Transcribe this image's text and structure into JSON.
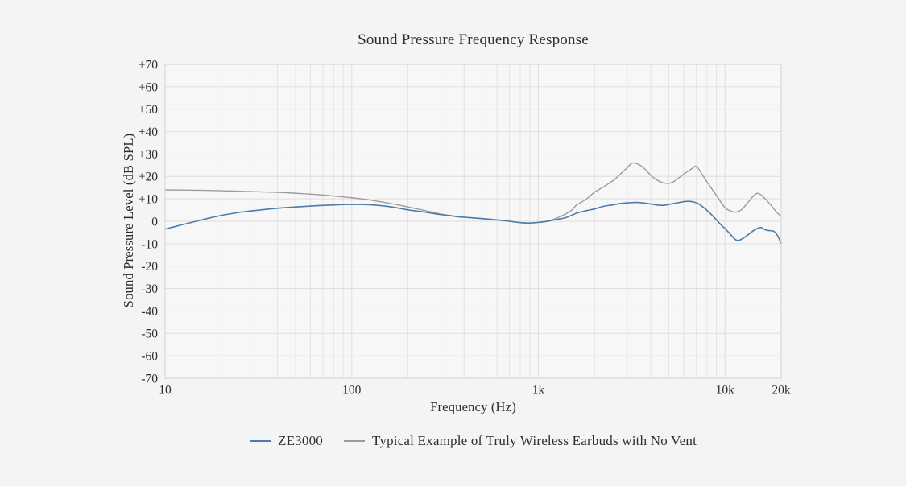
{
  "title": "Sound Pressure Frequency Response",
  "colors": {
    "background": "#f4f4f4",
    "plot_background": "#f7f7f7",
    "grid_minor": "#e4e4e4",
    "grid_major": "#dedede",
    "plot_border": "#d2d2d2",
    "text": "#2d2d2d",
    "series_ze3000": "#4e7ba9",
    "series_typical": "#9c9c9c"
  },
  "chart_data": {
    "type": "line",
    "title": "Sound Pressure Frequency Response",
    "xlabel": "Frequency (Hz)",
    "ylabel": "Sound Pressure Level  (dB SPL)",
    "x_scale": "log",
    "xlim": [
      10,
      20000
    ],
    "ylim": [
      -70,
      70
    ],
    "grid": true,
    "legend_position": "bottom",
    "x_ticks": [
      10,
      100,
      1000,
      10000,
      20000
    ],
    "x_tick_labels": [
      "10",
      "100",
      "1k",
      "10k",
      "20k"
    ],
    "y_ticks": [
      70,
      60,
      50,
      40,
      30,
      20,
      10,
      0,
      -10,
      -20,
      -30,
      -40,
      -50,
      -60,
      -70
    ],
    "y_tick_labels": [
      "+70",
      "+60",
      "+50",
      "+40",
      "+30",
      "+20",
      "+10",
      "0",
      "-10",
      "-20",
      "-30",
      "-40",
      "-50",
      "-60",
      "-70"
    ],
    "series": [
      {
        "name": "Typical Example of Truly Wireless Earbuds with No Vent",
        "color": "#9c9c9c",
        "points": [
          [
            10,
            14.0
          ],
          [
            16,
            13.8
          ],
          [
            25,
            13.4
          ],
          [
            40,
            12.9
          ],
          [
            50,
            12.5
          ],
          [
            63,
            12.0
          ],
          [
            80,
            11.3
          ],
          [
            100,
            10.5
          ],
          [
            125,
            9.5
          ],
          [
            150,
            8.4
          ],
          [
            175,
            7.4
          ],
          [
            200,
            6.4
          ],
          [
            250,
            4.7
          ],
          [
            300,
            3.2
          ],
          [
            350,
            2.4
          ],
          [
            400,
            1.8
          ],
          [
            500,
            1.2
          ],
          [
            600,
            0.6
          ],
          [
            700,
            0.0
          ],
          [
            800,
            -0.6
          ],
          [
            900,
            -0.8
          ],
          [
            1000,
            -0.5
          ],
          [
            1100,
            0.0
          ],
          [
            1200,
            0.8
          ],
          [
            1350,
            2.6
          ],
          [
            1500,
            4.8
          ],
          [
            1600,
            7.2
          ],
          [
            1800,
            9.8
          ],
          [
            2000,
            13.0
          ],
          [
            2200,
            15.0
          ],
          [
            2500,
            18.0
          ],
          [
            2750,
            21.0
          ],
          [
            3000,
            24.0
          ],
          [
            3200,
            26.0
          ],
          [
            3450,
            25.3
          ],
          [
            3700,
            23.5
          ],
          [
            4000,
            20.5
          ],
          [
            4300,
            18.5
          ],
          [
            4700,
            17.1
          ],
          [
            5200,
            17.3
          ],
          [
            6000,
            21.0
          ],
          [
            6600,
            23.3
          ],
          [
            7000,
            24.6
          ],
          [
            7400,
            22.0
          ],
          [
            8000,
            17.6
          ],
          [
            9000,
            11.5
          ],
          [
            10000,
            6.1
          ],
          [
            10800,
            4.5
          ],
          [
            11500,
            4.1
          ],
          [
            12300,
            5.3
          ],
          [
            13300,
            8.5
          ],
          [
            14200,
            11.3
          ],
          [
            14900,
            12.5
          ],
          [
            15700,
            11.6
          ],
          [
            16500,
            9.8
          ],
          [
            17500,
            7.5
          ],
          [
            18500,
            5.0
          ],
          [
            19300,
            3.3
          ],
          [
            20000,
            2.2
          ]
        ]
      },
      {
        "name": "ZE3000",
        "color": "#4e7ba9",
        "points": [
          [
            10,
            -3.5
          ],
          [
            12,
            -1.8
          ],
          [
            14,
            -0.4
          ],
          [
            16,
            0.8
          ],
          [
            18,
            1.8
          ],
          [
            20,
            2.6
          ],
          [
            25,
            4.0
          ],
          [
            32,
            5.0
          ],
          [
            40,
            5.8
          ],
          [
            50,
            6.4
          ],
          [
            63,
            6.9
          ],
          [
            80,
            7.3
          ],
          [
            100,
            7.5
          ],
          [
            125,
            7.4
          ],
          [
            150,
            6.8
          ],
          [
            175,
            6.0
          ],
          [
            200,
            5.1
          ],
          [
            250,
            4.0
          ],
          [
            300,
            3.0
          ],
          [
            350,
            2.3
          ],
          [
            400,
            1.8
          ],
          [
            500,
            1.2
          ],
          [
            600,
            0.6
          ],
          [
            700,
            0.0
          ],
          [
            800,
            -0.6
          ],
          [
            900,
            -0.8
          ],
          [
            1000,
            -0.5
          ],
          [
            1100,
            -0.1
          ],
          [
            1200,
            0.5
          ],
          [
            1400,
            1.6
          ],
          [
            1600,
            3.6
          ],
          [
            1800,
            4.7
          ],
          [
            2000,
            5.5
          ],
          [
            2240,
            6.7
          ],
          [
            2500,
            7.3
          ],
          [
            2800,
            8.0
          ],
          [
            3100,
            8.3
          ],
          [
            3400,
            8.4
          ],
          [
            3800,
            8.0
          ],
          [
            4200,
            7.4
          ],
          [
            4600,
            7.1
          ],
          [
            5000,
            7.5
          ],
          [
            5600,
            8.3
          ],
          [
            6300,
            8.9
          ],
          [
            7000,
            8.3
          ],
          [
            7500,
            6.8
          ],
          [
            8000,
            4.9
          ],
          [
            8500,
            2.8
          ],
          [
            9000,
            0.6
          ],
          [
            9500,
            -1.5
          ],
          [
            10000,
            -3.3
          ],
          [
            10700,
            -5.8
          ],
          [
            11100,
            -7.4
          ],
          [
            11700,
            -8.6
          ],
          [
            12500,
            -7.6
          ],
          [
            13300,
            -6.0
          ],
          [
            14200,
            -4.2
          ],
          [
            15000,
            -3.1
          ],
          [
            15600,
            -2.8
          ],
          [
            16200,
            -3.6
          ],
          [
            17000,
            -4.1
          ],
          [
            18200,
            -4.4
          ],
          [
            19000,
            -6.0
          ],
          [
            19500,
            -7.8
          ],
          [
            20000,
            -9.8
          ]
        ]
      }
    ]
  }
}
